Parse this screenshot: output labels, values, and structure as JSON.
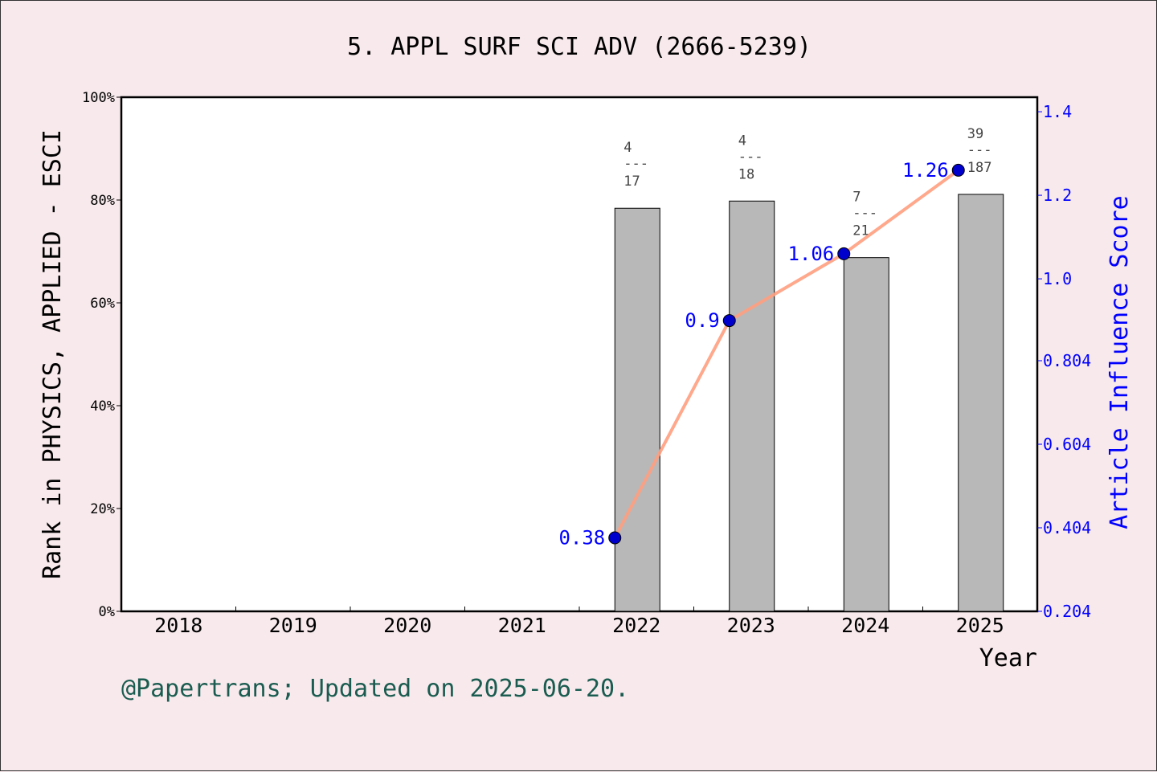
{
  "chart_data": {
    "type": "bar+line",
    "title": "5. APPL SURF SCI ADV (2666-5239)",
    "xlabel": "Year",
    "ylabel_left": "Rank in PHYSICS, APPLIED - ESCI",
    "ylabel_right": "Article Influence Score",
    "categories": [
      "2018",
      "2019",
      "2020",
      "2021",
      "2022",
      "2023",
      "2024",
      "2025"
    ],
    "left_axis": {
      "ylim": [
        0,
        100
      ],
      "ticks": [
        "0%",
        "20%",
        "40%",
        "60%",
        "80%",
        "100%"
      ],
      "tick_values": [
        0,
        20,
        40,
        60,
        80,
        100
      ]
    },
    "right_axis": {
      "ylim": [
        0.204,
        1.4
      ],
      "ticks": [
        "0.204",
        "0.404",
        "0.604",
        "0.804",
        "1.0",
        "1.2",
        "1.4"
      ],
      "tick_values": [
        0.204,
        0.404,
        0.604,
        0.804,
        1.0,
        1.2,
        1.4
      ]
    },
    "bars": [
      {
        "year": "2022",
        "value": 78.4,
        "rank": "4",
        "total": "17"
      },
      {
        "year": "2023",
        "value": 79.8,
        "rank": "4",
        "total": "18"
      },
      {
        "year": "2024",
        "value": 68.8,
        "rank": "7",
        "total": "21"
      },
      {
        "year": "2025",
        "value": 81.1,
        "rank": "39",
        "total": "187"
      }
    ],
    "line": [
      {
        "year": "2022",
        "value": 0.38,
        "label": "0.38"
      },
      {
        "year": "2023",
        "value": 0.9,
        "label": "0.9"
      },
      {
        "year": "2024",
        "value": 1.06,
        "label": "1.06"
      },
      {
        "year": "2025",
        "value": 1.26,
        "label": "1.26"
      }
    ],
    "colors": {
      "bar": "#b8b8b8",
      "line": "#ff9f7f",
      "point": "#0000cc",
      "right_axis": "#0000ff",
      "footer": "#1a5c50",
      "background": "#f8e9ec"
    },
    "footer": "@Papertrans; Updated on 2025-06-20."
  }
}
